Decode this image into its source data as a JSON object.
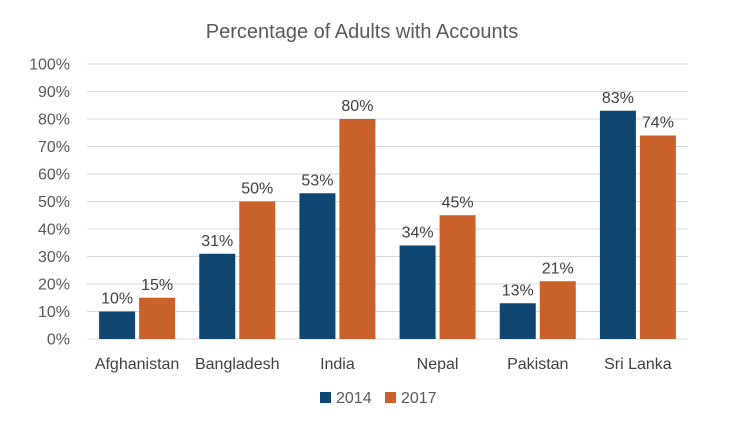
{
  "chart_data": {
    "type": "bar",
    "title": "Percentage of Adults with Accounts",
    "categories": [
      "Afghanistan",
      "Bangladesh",
      "India",
      "Nepal",
      "Pakistan",
      "Sri Lanka"
    ],
    "series": [
      {
        "name": "2014",
        "color": "#0f4672",
        "values": [
          10,
          31,
          53,
          34,
          13,
          83
        ],
        "labels": [
          "10%",
          "31%",
          "53%",
          "34%",
          "13%",
          "83%"
        ]
      },
      {
        "name": "2017",
        "color": "#c8612a",
        "values": [
          15,
          50,
          80,
          45,
          21,
          74
        ],
        "labels": [
          "15%",
          "50%",
          "80%",
          "45%",
          "21%",
          "74%"
        ]
      }
    ],
    "ylim": [
      0,
      100
    ],
    "yticks": [
      "0%",
      "10%",
      "20%",
      "30%",
      "40%",
      "50%",
      "60%",
      "70%",
      "80%",
      "90%",
      "100%"
    ],
    "grid": true,
    "legend_position": "bottom"
  }
}
